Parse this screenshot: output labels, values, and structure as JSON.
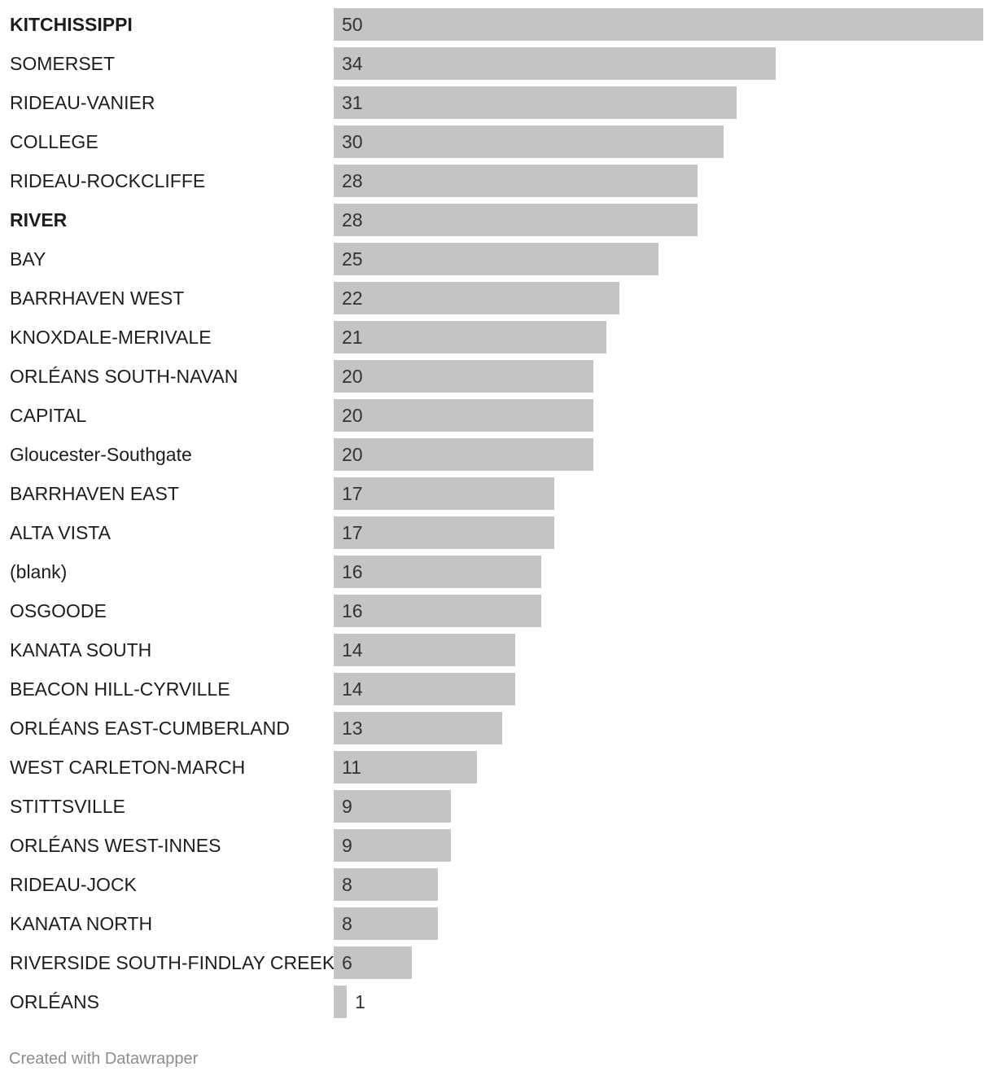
{
  "chart_data": {
    "type": "bar",
    "orientation": "horizontal",
    "categories": [
      "KITCHISSIPPI",
      "SOMERSET",
      "RIDEAU-VANIER",
      "COLLEGE",
      "RIDEAU-ROCKCLIFFE",
      "RIVER",
      "BAY",
      "BARRHAVEN WEST",
      "KNOXDALE-MERIVALE",
      "ORLÉANS SOUTH-NAVAN",
      "CAPITAL",
      "Gloucester-Southgate",
      "BARRHAVEN EAST",
      "ALTA VISTA",
      "(blank)",
      "OSGOODE",
      "KANATA SOUTH",
      "BEACON HILL-CYRVILLE",
      "ORLÉANS EAST-CUMBERLAND",
      "WEST CARLETON-MARCH",
      "STITTSVILLE",
      "ORLÉANS WEST-INNES",
      "RIDEAU-JOCK",
      "KANATA NORTH",
      "RIVERSIDE SOUTH-FINDLAY CREEK",
      "ORLÉANS"
    ],
    "values": [
      50,
      34,
      31,
      30,
      28,
      28,
      25,
      22,
      21,
      20,
      20,
      20,
      17,
      17,
      16,
      16,
      14,
      14,
      13,
      11,
      9,
      9,
      8,
      8,
      6,
      1
    ],
    "bold_categories": [
      "KITCHISSIPPI",
      "RIVER"
    ],
    "xlim": [
      0,
      50
    ],
    "bar_color": "#c4c4c4",
    "grid": false,
    "legend": "none"
  },
  "footer": {
    "credit": "Created with Datawrapper"
  }
}
